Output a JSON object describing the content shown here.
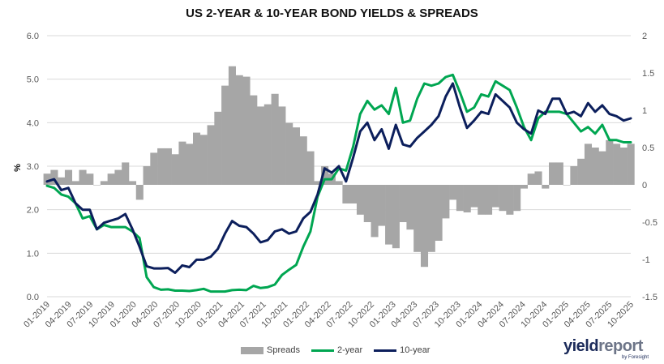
{
  "chart_data": {
    "type": "line+area",
    "title": "US 2-YEAR & 10-YEAR BOND YIELDS & SPREADS",
    "ylabel": "%",
    "y_left_range": [
      0.0,
      6.0
    ],
    "y_right_range": [
      -1.5,
      2.0
    ],
    "y_left_ticks": [
      "0.0",
      "1.0",
      "2.0",
      "3.0",
      "4.0",
      "5.0",
      "6.0"
    ],
    "y_right_ticks": [
      "-1.5",
      "-1",
      "-0.5",
      "0",
      "0.5",
      "1",
      "1.5",
      "2"
    ],
    "x_ticks": [
      "01-2019",
      "04-2019",
      "07-2019",
      "10-2019",
      "01-2020",
      "04-2020",
      "07-2020",
      "10-2020",
      "01-2021",
      "04-2021",
      "07-2021",
      "10-2021",
      "01-2022",
      "04-2022",
      "07-2022",
      "10-2022",
      "01-2023",
      "04-2023",
      "07-2023",
      "10-2023",
      "01-2024",
      "04-2024",
      "07-2024",
      "10-2024",
      "01-2025",
      "04-2025",
      "07-2025",
      "10-2025"
    ],
    "x": [
      "01-2019",
      "02-2019",
      "03-2019",
      "04-2019",
      "05-2019",
      "06-2019",
      "07-2019",
      "08-2019",
      "09-2019",
      "10-2019",
      "11-2019",
      "12-2019",
      "01-2020",
      "02-2020",
      "03-2020",
      "04-2020",
      "05-2020",
      "06-2020",
      "07-2020",
      "08-2020",
      "09-2020",
      "10-2020",
      "11-2020",
      "12-2020",
      "01-2021",
      "02-2021",
      "03-2021",
      "04-2021",
      "05-2021",
      "06-2021",
      "07-2021",
      "08-2021",
      "09-2021",
      "10-2021",
      "11-2021",
      "12-2021",
      "01-2022",
      "02-2022",
      "03-2022",
      "04-2022",
      "05-2022",
      "06-2022",
      "07-2022",
      "08-2022",
      "09-2022",
      "10-2022",
      "11-2022",
      "12-2022",
      "01-2023",
      "02-2023",
      "03-2023",
      "04-2023",
      "05-2023",
      "06-2023",
      "07-2023",
      "08-2023",
      "09-2023",
      "10-2023",
      "11-2023",
      "12-2023",
      "01-2024",
      "02-2024",
      "03-2024",
      "04-2024",
      "05-2024",
      "06-2024",
      "07-2024",
      "08-2024",
      "09-2024",
      "10-2024",
      "11-2024",
      "12-2024",
      "01-2025",
      "02-2025",
      "03-2025",
      "04-2025",
      "05-2025",
      "06-2025",
      "07-2025",
      "08-2025",
      "09-2025",
      "10-2025",
      "11-2025"
    ],
    "series": [
      {
        "name": "2-year",
        "axis": "left",
        "color": "#00a651",
        "values": [
          2.55,
          2.5,
          2.35,
          2.3,
          2.15,
          1.8,
          1.85,
          1.55,
          1.65,
          1.6,
          1.6,
          1.6,
          1.5,
          1.35,
          0.45,
          0.22,
          0.16,
          0.17,
          0.14,
          0.14,
          0.13,
          0.15,
          0.18,
          0.12,
          0.12,
          0.12,
          0.15,
          0.16,
          0.15,
          0.25,
          0.2,
          0.22,
          0.28,
          0.5,
          0.62,
          0.73,
          1.15,
          1.5,
          2.3,
          2.7,
          2.7,
          2.95,
          2.9,
          3.45,
          4.2,
          4.5,
          4.3,
          4.4,
          4.2,
          4.8,
          4.0,
          4.05,
          4.55,
          4.9,
          4.85,
          4.9,
          5.05,
          5.1,
          4.7,
          4.25,
          4.35,
          4.65,
          4.6,
          4.95,
          4.85,
          4.75,
          4.35,
          3.9,
          3.6,
          4.1,
          4.25,
          4.25,
          4.25,
          4.2,
          4.0,
          3.8,
          3.9,
          3.75,
          3.95,
          3.6,
          3.6,
          3.55,
          3.55
        ]
      },
      {
        "name": "10-year",
        "axis": "left",
        "color": "#0c1f5c",
        "values": [
          2.65,
          2.7,
          2.45,
          2.5,
          2.15,
          2.0,
          2.0,
          1.55,
          1.7,
          1.75,
          1.8,
          1.9,
          1.55,
          1.15,
          0.7,
          0.65,
          0.65,
          0.66,
          0.55,
          0.72,
          0.68,
          0.85,
          0.85,
          0.92,
          1.1,
          1.45,
          1.74,
          1.63,
          1.6,
          1.45,
          1.25,
          1.3,
          1.5,
          1.55,
          1.45,
          1.5,
          1.8,
          1.95,
          2.35,
          2.95,
          2.85,
          3.0,
          2.65,
          3.2,
          3.8,
          4.0,
          3.6,
          3.85,
          3.4,
          3.95,
          3.5,
          3.45,
          3.65,
          3.8,
          3.95,
          4.15,
          4.6,
          4.9,
          4.35,
          3.88,
          4.05,
          4.25,
          4.2,
          4.65,
          4.5,
          4.35,
          4.0,
          3.85,
          3.75,
          4.28,
          4.2,
          4.55,
          4.55,
          4.2,
          4.25,
          4.15,
          4.45,
          4.25,
          4.4,
          4.2,
          4.15,
          4.05,
          4.1
        ]
      },
      {
        "name": "Spreads",
        "axis": "right",
        "color": "#a6a6a6",
        "values": [
          0.15,
          0.2,
          0.1,
          0.2,
          0.05,
          0.2,
          0.15,
          0.0,
          0.05,
          0.15,
          0.2,
          0.3,
          0.05,
          -0.2,
          0.25,
          0.43,
          0.49,
          0.49,
          0.41,
          0.58,
          0.55,
          0.7,
          0.67,
          0.8,
          0.98,
          1.33,
          1.59,
          1.47,
          1.45,
          1.2,
          1.05,
          1.08,
          1.22,
          1.05,
          0.83,
          0.77,
          0.65,
          0.45,
          0.05,
          0.25,
          0.15,
          0.05,
          -0.25,
          -0.25,
          -0.4,
          -0.5,
          -0.7,
          -0.55,
          -0.8,
          -0.85,
          -0.5,
          -0.6,
          -0.9,
          -1.1,
          -0.9,
          -0.75,
          -0.45,
          -0.2,
          -0.35,
          -0.37,
          -0.3,
          -0.4,
          -0.4,
          -0.3,
          -0.35,
          -0.4,
          -0.35,
          -0.05,
          0.15,
          0.18,
          -0.05,
          0.3,
          0.3,
          0.0,
          0.25,
          0.35,
          0.55,
          0.5,
          0.45,
          0.6,
          0.55,
          0.5,
          0.55
        ]
      }
    ],
    "legend": [
      "Spreads",
      "2-year",
      "10-year"
    ],
    "legend_position": "bottom",
    "grid": "horizontal"
  },
  "brand": {
    "part1": "yield",
    "part2": "report",
    "sub": "by Foresight"
  }
}
